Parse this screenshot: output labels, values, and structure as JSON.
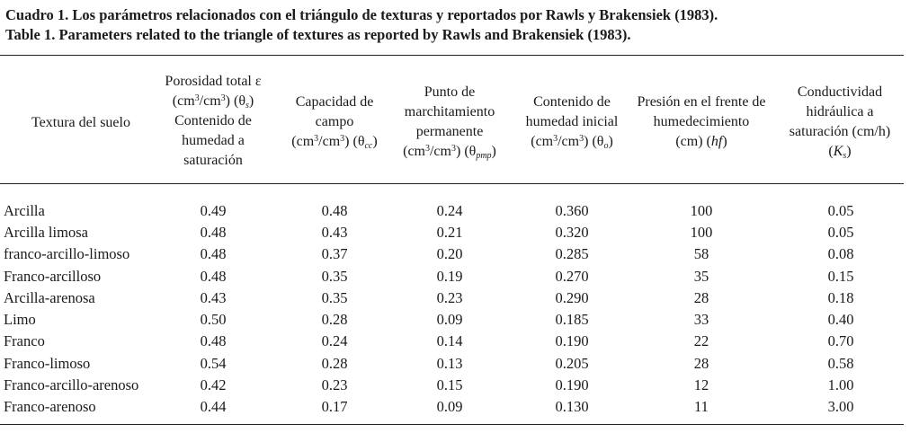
{
  "caption": {
    "es": "Cuadro 1. Los parámetros relacionados con el triángulo de texturas y reportados por Rawls y Brakensiek (1983).",
    "en": "Table 1. Parameters related to the triangle of textures as reported by Rawls and Brakensiek (1983)."
  },
  "headers": {
    "texture": "Textura del suelo",
    "porosity": {
      "l1": "Porosidad total ε",
      "l2a": "(cm",
      "l2b": "/cm",
      "l2c": ")  (θ",
      "l2d": ")",
      "sup": "3",
      "sub": "s",
      "l3": "Contenido de",
      "l4": "humedad a",
      "l5": "saturación"
    },
    "field_capacity": {
      "l1": "Capacidad de",
      "l2": "campo",
      "l3a": "(cm",
      "l3b": "/cm",
      "l3c": ") (θ",
      "l3d": ")",
      "sup": "3",
      "sub": "cc"
    },
    "wilting_point": {
      "l1": "Punto de",
      "l2": "marchitamiento",
      "l3": "permanente",
      "l4a": "(cm",
      "l4b": "/cm",
      "l4c": ") (θ",
      "l4d": ")",
      "sup": "3",
      "sub": "pmp"
    },
    "initial_moisture": {
      "l1": "Contenido de",
      "l2": "humedad inicial",
      "l3a": "(cm",
      "l3b": "/cm",
      "l3c": ") (θ",
      "l3d": ")",
      "sup": "3",
      "sub": "o"
    },
    "wetting_front": {
      "l1": "Presión en el frente de",
      "l2": "humedecimiento",
      "l3a": "(cm) (",
      "l3b": "hf",
      "l3c": ")"
    },
    "conductivity": {
      "l1": "Conductividad",
      "l2": "hidráulica a",
      "l3": "saturación (cm/h)",
      "l4a": "(",
      "l4b": "K",
      "l4c": ")",
      "sub": "s"
    }
  },
  "rows": [
    {
      "texture": "Arcilla",
      "porosity": "0.49",
      "fc": "0.48",
      "wp": "0.24",
      "im": "0.360",
      "wf": "100",
      "k": "0.05"
    },
    {
      "texture": "Arcilla limosa",
      "porosity": "0.48",
      "fc": "0.43",
      "wp": "0.21",
      "im": "0.320",
      "wf": "100",
      "k": "0.05"
    },
    {
      "texture": "franco-arcillo-limoso",
      "porosity": "0.48",
      "fc": "0.37",
      "wp": "0.20",
      "im": "0.285",
      "wf": "58",
      "k": "0.08"
    },
    {
      "texture": "Franco-arcilloso",
      "porosity": "0.48",
      "fc": "0.35",
      "wp": "0.19",
      "im": "0.270",
      "wf": "35",
      "k": "0.15"
    },
    {
      "texture": "Arcilla-arenosa",
      "porosity": "0.43",
      "fc": "0.35",
      "wp": "0.23",
      "im": "0.290",
      "wf": "28",
      "k": "0.18"
    },
    {
      "texture": "Limo",
      "porosity": "0.50",
      "fc": "0.28",
      "wp": "0.09",
      "im": "0.185",
      "wf": "33",
      "k": "0.40"
    },
    {
      "texture": "Franco",
      "porosity": "0.48",
      "fc": "0.24",
      "wp": "0.14",
      "im": "0.190",
      "wf": "22",
      "k": "0.70"
    },
    {
      "texture": "Franco-limoso",
      "porosity": "0.54",
      "fc": "0.28",
      "wp": "0.13",
      "im": "0.205",
      "wf": "28",
      "k": "0.58"
    },
    {
      "texture": "Franco-arcillo-arenoso",
      "porosity": "0.42",
      "fc": "0.23",
      "wp": "0.15",
      "im": "0.190",
      "wf": "12",
      "k": "1.00"
    },
    {
      "texture": "Franco-arenoso",
      "porosity": "0.44",
      "fc": "0.17",
      "wp": "0.09",
      "im": "0.130",
      "wf": "11",
      "k": "3.00"
    }
  ]
}
